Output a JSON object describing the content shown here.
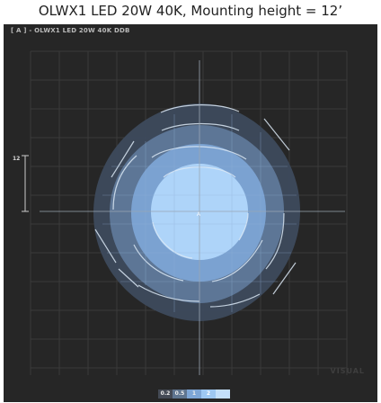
{
  "title": "OLWX1 LED 20W 40K, Mounting height = 12’",
  "panel": {
    "label": "[ A ] - OLWX1 LED 20W 40K DDB",
    "watermark": "VISUAL",
    "scale_label": "12"
  },
  "legend": [
    {
      "label": "0.2",
      "color": "#444a55"
    },
    {
      "label": "0.5",
      "color": "#5f7590"
    },
    {
      "label": "1",
      "color": "#7ea6d6"
    },
    {
      "label": "2",
      "color": "#9ec8f2"
    },
    {
      "label": "",
      "color": "#c4e0fb"
    }
  ],
  "center_marker": "A",
  "colors": {
    "background": "#262626",
    "grid": "#3a3a3a",
    "contour_outer": "#3d4a5c",
    "contour_2": "#5d7696",
    "contour_3": "#7ba2d1",
    "contour_inner": "#aed4f9"
  }
}
